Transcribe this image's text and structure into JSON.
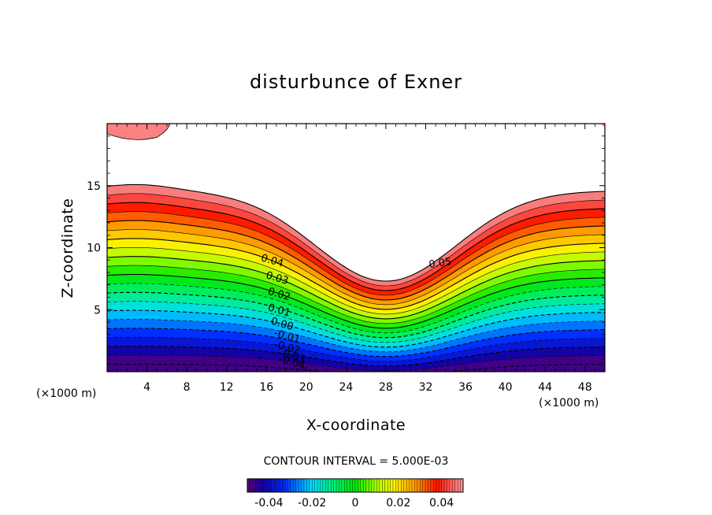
{
  "chart_data": {
    "type": "contour",
    "title": "disturbunce of Exner",
    "xlabel": "X-coordinate",
    "ylabel": "Z-coordinate",
    "x_unit": "(×1000 m)",
    "y_unit": "(×1000 m)",
    "xlim": [
      0,
      50
    ],
    "ylim": [
      0,
      20
    ],
    "x_ticks": [
      4,
      8,
      12,
      16,
      20,
      24,
      28,
      32,
      36,
      40,
      44,
      48
    ],
    "y_ticks": [
      5,
      10,
      15
    ],
    "contour_interval_text": "CONTOUR INTERVAL = 5.000E-03",
    "contour_interval": 0.005,
    "value_range": [
      -0.05,
      0.05
    ],
    "contour_labels": [
      {
        "value": 0.05,
        "text": "0.05",
        "x": 33.5,
        "z": 8.5
      },
      {
        "value": 0.04,
        "text": "0.04",
        "x": 16.5,
        "z": 8.7
      },
      {
        "value": 0.03,
        "text": "0.03",
        "x": 17.0,
        "z": 7.3
      },
      {
        "value": 0.02,
        "text": "0.02",
        "x": 17.2,
        "z": 6.0
      },
      {
        "value": 0.01,
        "text": "0.01",
        "x": 17.2,
        "z": 4.7
      },
      {
        "value": 0.0,
        "text": "0.00",
        "x": 17.5,
        "z": 3.6
      },
      {
        "value": -0.01,
        "text": "-0.01",
        "x": 18.0,
        "z": 2.6
      },
      {
        "value": -0.02,
        "text": "-0.02",
        "x": 18.0,
        "z": 1.7
      },
      {
        "value": -0.03,
        "text": "-0.03",
        "x": 18.5,
        "z": 1.0
      },
      {
        "value": -0.04,
        "text": "-0.04",
        "x": 18.5,
        "z": 0.5
      }
    ],
    "colorbar": {
      "ticks": [
        -0.04,
        -0.02,
        0,
        0.02,
        0.04
      ],
      "tick_labels": [
        "-0.04",
        "-0.02",
        "0",
        "0.02",
        "0.04"
      ]
    }
  }
}
